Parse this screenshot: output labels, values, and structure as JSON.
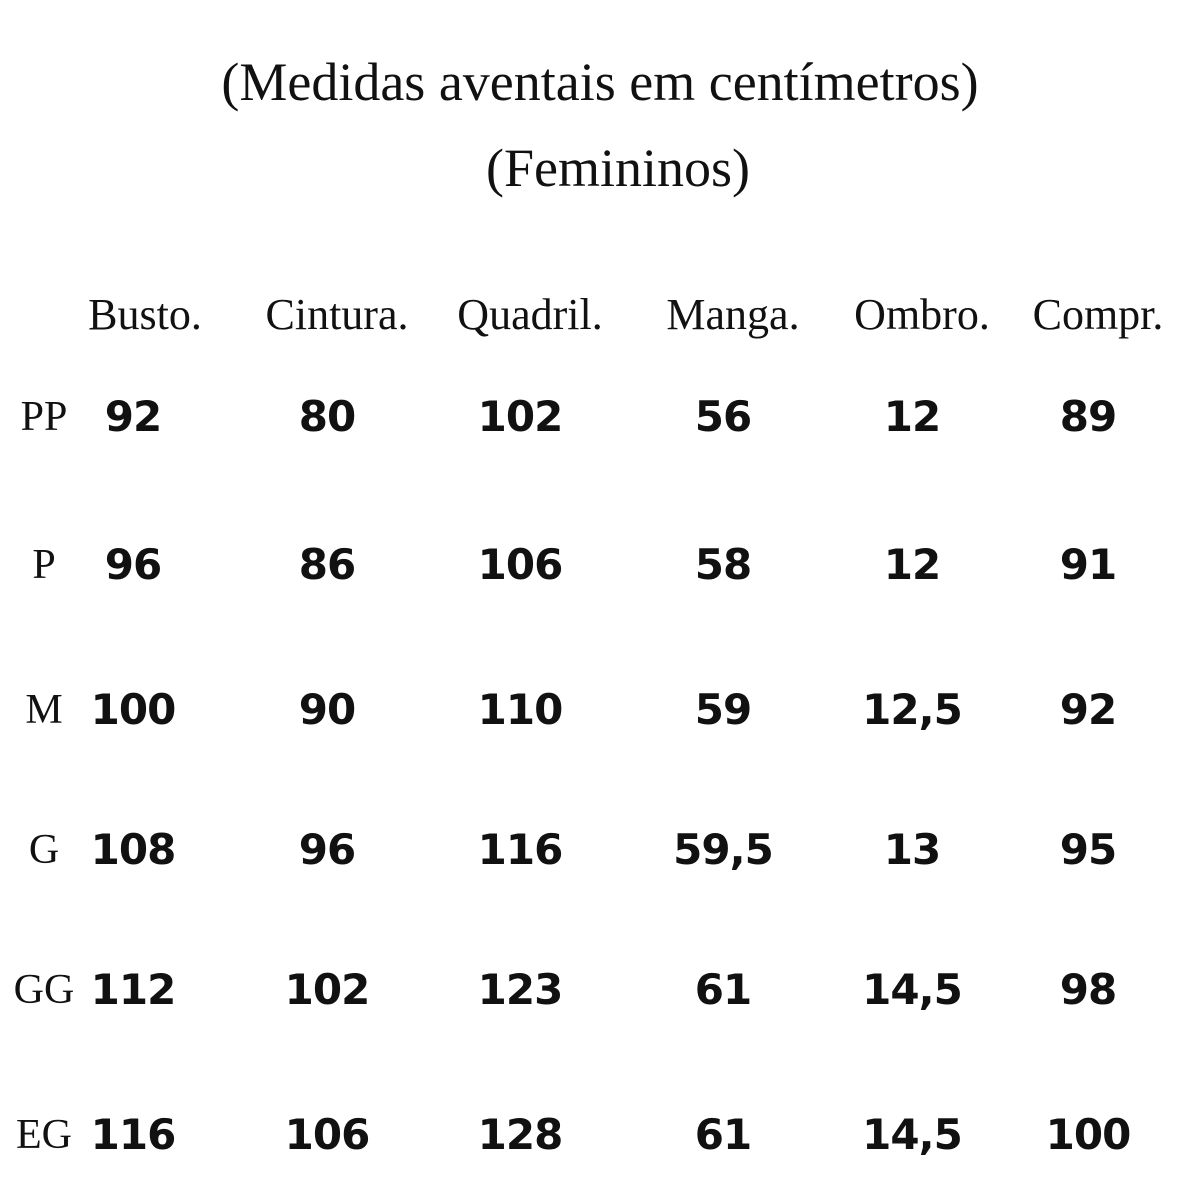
{
  "header": {
    "title": "(Medidas aventais em centímetros)",
    "subtitle": "(Femininos)"
  },
  "table": {
    "columns": [
      "Busto.",
      "Cintura.",
      "Quadril.",
      "Manga.",
      "Ombro.",
      "Compr."
    ],
    "rows": [
      {
        "size": "PP",
        "cells": [
          "92",
          "80",
          "102",
          "56",
          "12",
          "89"
        ]
      },
      {
        "size": "P",
        "cells": [
          "96",
          "86",
          "106",
          "58",
          "12",
          "91"
        ]
      },
      {
        "size": "M",
        "cells": [
          "100",
          "90",
          "110",
          "59",
          "12,5",
          "92"
        ]
      },
      {
        "size": "G",
        "cells": [
          "108",
          "96",
          "116",
          "59,5",
          "13",
          "95"
        ]
      },
      {
        "size": "GG",
        "cells": [
          "112",
          "102",
          "123",
          "61",
          "14,5",
          "98"
        ]
      },
      {
        "size": "EG",
        "cells": [
          "116",
          "106",
          "128",
          "61",
          "14,5",
          "100"
        ]
      }
    ]
  }
}
